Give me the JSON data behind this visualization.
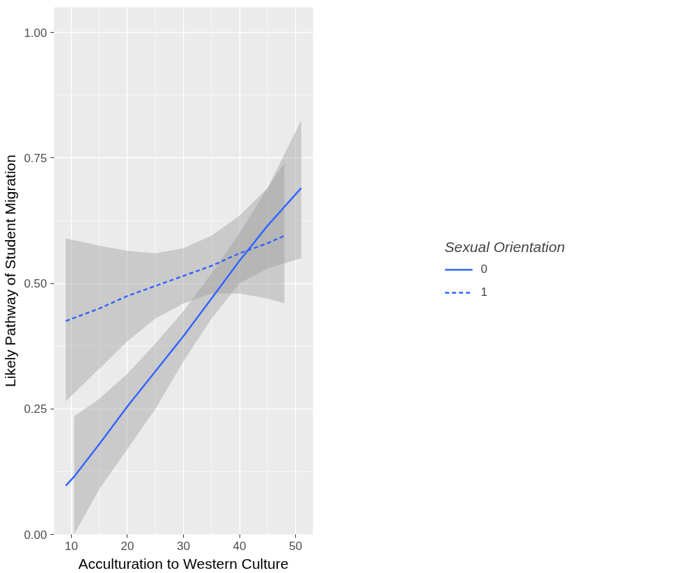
{
  "chart_data": {
    "type": "line",
    "xlabel": "Acculturation to Western Culture",
    "ylabel": "Likely Pathway of Student Migration",
    "legend_title": "Sexual Orientation",
    "xlim": [
      6.9,
      53.1
    ],
    "ylim": [
      0,
      1.05
    ],
    "xticks": [
      10,
      20,
      30,
      40,
      50
    ],
    "yticks": [
      {
        "value": 0,
        "label": "0.00"
      },
      {
        "value": 0.25,
        "label": "0.25"
      },
      {
        "value": 0.5,
        "label": "0.50"
      },
      {
        "value": 0.75,
        "label": "0.75"
      },
      {
        "value": 1,
        "label": "1.00"
      }
    ],
    "grid": true,
    "legend": "right",
    "series": [
      {
        "name": "0",
        "color": "#3366ff",
        "line_style": "solid",
        "x": [
          9,
          10.5,
          15,
          20,
          25,
          30,
          35,
          40,
          45,
          51
        ],
        "values": [
          0.097,
          0.115,
          0.18,
          0.255,
          0.325,
          0.395,
          0.47,
          0.545,
          0.615,
          0.69
        ],
        "lower": [
          null,
          0.0,
          0.09,
          0.17,
          0.25,
          0.345,
          0.43,
          0.5,
          0.53,
          0.55
        ],
        "upper": [
          null,
          0.235,
          0.27,
          0.32,
          0.38,
          0.445,
          0.52,
          0.6,
          0.69,
          0.825
        ]
      },
      {
        "name": "1",
        "color": "#3366ff",
        "line_style": "dashed",
        "x": [
          9,
          15,
          20,
          25,
          30,
          35,
          40,
          45,
          48
        ],
        "values": [
          0.425,
          0.45,
          0.475,
          0.495,
          0.515,
          0.535,
          0.56,
          0.58,
          0.595
        ],
        "lower": [
          0.265,
          0.33,
          0.385,
          0.43,
          0.46,
          0.48,
          0.48,
          0.47,
          0.46
        ],
        "upper": [
          0.59,
          0.575,
          0.565,
          0.56,
          0.57,
          0.595,
          0.635,
          0.69,
          0.74
        ]
      }
    ]
  }
}
